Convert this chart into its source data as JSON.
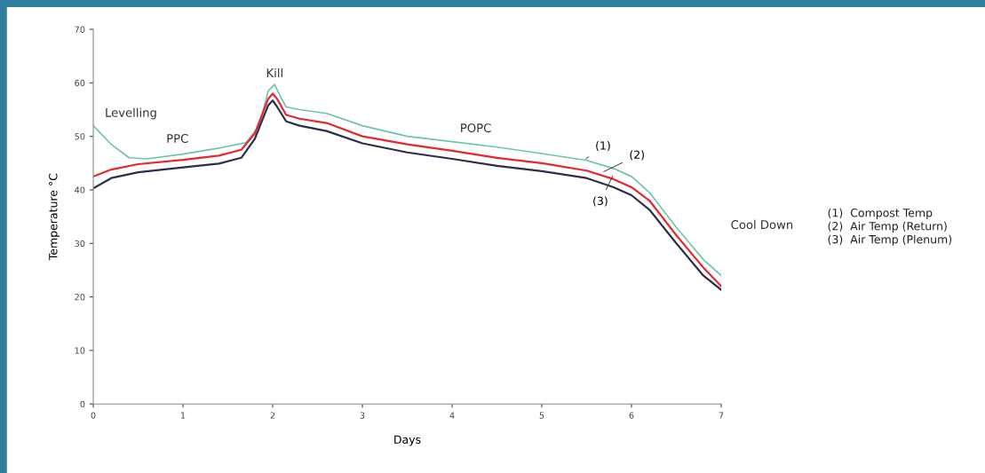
{
  "chart_data": {
    "type": "line",
    "xlabel": "Days",
    "ylabel": "Temperature °C",
    "xlim": [
      0,
      7
    ],
    "xticks": [
      0,
      1,
      2,
      3,
      4,
      5,
      6,
      7
    ],
    "ylim": [
      0,
      70
    ],
    "yticks": [
      0,
      10,
      20,
      30,
      40,
      50,
      60,
      70
    ],
    "grid": false,
    "legend": false,
    "marker": "none",
    "line_style": "solid",
    "series": [
      {
        "color": "#6cc5a8",
        "x": [
          0,
          0.2,
          0.4,
          0.6,
          1,
          1.4,
          1.7,
          1.85,
          1.95,
          2.02,
          2.1,
          2.15,
          2.3,
          2.6,
          3,
          3.5,
          4,
          4.5,
          5,
          5.5,
          5.8,
          6,
          6.2,
          6.5,
          6.8,
          7
        ],
        "values": [
          52,
          48.5,
          46,
          45.8,
          46.7,
          47.8,
          48.8,
          52,
          58.5,
          59.7,
          57,
          55.5,
          55,
          54.3,
          52,
          50,
          49,
          48,
          46.8,
          45.5,
          44,
          42.5,
          39.5,
          33,
          27,
          24
        ]
      },
      {
        "color": "#e8262b",
        "x": [
          0,
          0.2,
          0.5,
          1,
          1.4,
          1.65,
          1.8,
          1.95,
          2,
          2.05,
          2.15,
          2.3,
          2.6,
          3,
          3.5,
          4,
          4.5,
          5,
          5.5,
          5.8,
          6,
          6.2,
          6.5,
          6.8,
          7
        ],
        "values": [
          42.5,
          43.8,
          44.8,
          45.6,
          46.4,
          47.5,
          50.5,
          57,
          58,
          57,
          54,
          53.3,
          52.5,
          50,
          48.5,
          47.3,
          46,
          45,
          43.6,
          42,
          40.5,
          38,
          31.5,
          25.5,
          22
        ]
      },
      {
        "color": "#2b2f4a",
        "x": [
          0,
          0.2,
          0.5,
          1,
          1.4,
          1.65,
          1.8,
          1.95,
          2,
          2.05,
          2.15,
          2.3,
          2.6,
          3,
          3.5,
          4,
          4.5,
          5,
          5.5,
          5.8,
          6,
          6.2,
          6.5,
          6.8,
          7
        ],
        "values": [
          40.3,
          42.2,
          43.3,
          44.2,
          44.9,
          46,
          49.5,
          55.8,
          56.7,
          55.5,
          52.8,
          52,
          51,
          48.7,
          47,
          45.8,
          44.5,
          43.5,
          42.2,
          40.5,
          39,
          36.3,
          30,
          24,
          21.3
        ]
      }
    ],
    "annotations": [
      "Levelling",
      "PPC",
      "Kill",
      "POPC",
      "Cool Down",
      {
        "text": "(1)",
        "x": 5.49,
        "y": 45.8
      },
      {
        "text": "(2)",
        "x": 5.69,
        "y": 43.4
      },
      {
        "text": "(3)",
        "x": 5.79,
        "y": 42.6
      },
      "(1)  Compost Temp\n(2)  Air Temp (Return)\n(3)  Air Temp (Plenum)"
    ]
  }
}
